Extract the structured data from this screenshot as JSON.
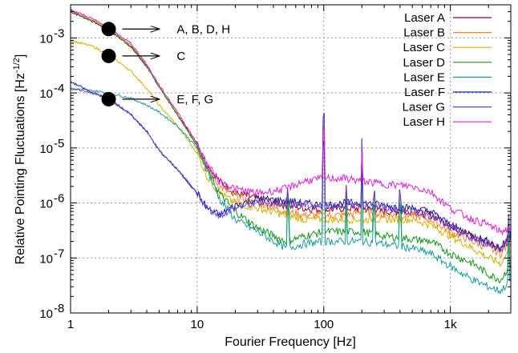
{
  "chart_data": {
    "type": "line",
    "title": "",
    "xlabel": "Fourier Frequency [Hz]",
    "ylabel": "Relative Pointing Fluctuations [Hz",
    "ylabel_exp": "-1/2",
    "ylabel_tail": "]",
    "x_scale": "log",
    "y_scale": "log",
    "xlim": [
      1,
      3000
    ],
    "ylim": [
      1e-08,
      0.004
    ],
    "x_ticks": [
      {
        "value": 1,
        "label": "1"
      },
      {
        "value": 10,
        "label": "10"
      },
      {
        "value": 100,
        "label": "100"
      },
      {
        "value": 1000,
        "label": "1k"
      }
    ],
    "y_ticks": [
      {
        "value": 1e-08,
        "base": "10",
        "exp": "-8"
      },
      {
        "value": 1e-07,
        "base": "10",
        "exp": "-7"
      },
      {
        "value": 1e-06,
        "base": "10",
        "exp": "-6"
      },
      {
        "value": 1e-05,
        "base": "10",
        "exp": "-5"
      },
      {
        "value": 0.0001,
        "base": "10",
        "exp": "-4"
      },
      {
        "value": 0.001,
        "base": "10",
        "exp": "-3"
      }
    ],
    "grid": true,
    "legend_position": "top-right",
    "series": [
      {
        "name": "Laser A",
        "color": "#99002b",
        "x": [
          1,
          1.5,
          2,
          3,
          4,
          5,
          7,
          10,
          12,
          15,
          20,
          30,
          50,
          70,
          100,
          150,
          200,
          300,
          500,
          700,
          1000,
          1500,
          2000,
          2500,
          3000
        ],
        "y": [
          0.003,
          0.002,
          0.0014,
          0.0007,
          0.0003,
          0.00013,
          4e-05,
          1.2e-05,
          5e-06,
          2.5e-06,
          1.5e-06,
          1.2e-06,
          9e-07,
          8e-07,
          7.5e-07,
          8e-07,
          8e-07,
          7e-07,
          7e-07,
          6e-07,
          4e-07,
          2.5e-07,
          2e-07,
          1.5e-07,
          2.5e-07
        ]
      },
      {
        "name": "Laser B",
        "color": "#ff7f2a",
        "x": [
          1,
          1.5,
          2,
          3,
          4,
          5,
          7,
          10,
          12,
          15,
          20,
          30,
          50,
          70,
          100,
          150,
          200,
          300,
          500,
          700,
          1000,
          1500,
          2000,
          2500,
          3000
        ],
        "y": [
          0.0032,
          0.0021,
          0.0015,
          0.00075,
          0.00031,
          0.00013,
          4e-05,
          1.1e-05,
          4e-06,
          2e-06,
          1.3e-06,
          1e-06,
          7e-07,
          6e-07,
          6e-07,
          6e-07,
          7e-07,
          6e-07,
          6e-07,
          5e-07,
          3e-07,
          2e-07,
          1.5e-07,
          1.2e-07,
          2e-07
        ]
      },
      {
        "name": "Laser C",
        "color": "#d4b000",
        "x": [
          1,
          1.5,
          2,
          3,
          4,
          5,
          7,
          10,
          12,
          15,
          20,
          30,
          50,
          70,
          100,
          150,
          200,
          300,
          500,
          700,
          1000,
          1500,
          2000,
          2500,
          3000
        ],
        "y": [
          0.0009,
          0.0007,
          0.0005,
          0.00025,
          0.00012,
          6e-05,
          2.5e-05,
          8e-06,
          3e-06,
          1.5e-06,
          1e-06,
          8e-07,
          6e-07,
          5e-07,
          5e-07,
          5e-07,
          5e-07,
          5e-07,
          5e-07,
          4e-07,
          2.5e-07,
          1.5e-07,
          1e-07,
          8e-08,
          1.5e-07
        ]
      },
      {
        "name": "Laser D",
        "color": "#109618",
        "x": [
          1,
          1.5,
          2,
          3,
          4,
          5,
          7,
          10,
          12,
          15,
          20,
          30,
          50,
          70,
          100,
          150,
          200,
          300,
          500,
          700,
          1000,
          1500,
          2000,
          2500,
          3000
        ],
        "y": [
          0.0031,
          0.002,
          0.0014,
          0.0007,
          0.0003,
          0.00013,
          4e-05,
          1.1e-05,
          4e-06,
          1.5e-06,
          7e-07,
          3.5e-07,
          2e-07,
          2.5e-07,
          3e-07,
          3e-07,
          3e-07,
          2.5e-07,
          2.2e-07,
          2e-07,
          1.2e-07,
          8e-08,
          5e-08,
          4e-08,
          8e-08
        ]
      },
      {
        "name": "Laser E",
        "color": "#1a9a9a",
        "x": [
          1,
          1.5,
          2,
          3,
          4,
          5,
          7,
          10,
          12,
          15,
          20,
          30,
          50,
          70,
          100,
          150,
          200,
          300,
          500,
          700,
          1000,
          1500,
          2000,
          2500,
          3000
        ],
        "y": [
          0.00012,
          0.00011,
          0.0001,
          8e-05,
          6e-05,
          4.5e-05,
          2.5e-05,
          1e-05,
          4e-06,
          1.2e-06,
          5e-07,
          3e-07,
          1.5e-07,
          1.8e-07,
          2e-07,
          2e-07,
          2e-07,
          1.8e-07,
          1.5e-07,
          1.2e-07,
          7e-08,
          4e-08,
          3e-08,
          2.5e-08,
          4e-08
        ]
      },
      {
        "name": "Laser F",
        "color": "#1f1f9e",
        "x": [
          1,
          1.5,
          2,
          3,
          4,
          5,
          7,
          10,
          12,
          15,
          20,
          30,
          50,
          70,
          100,
          150,
          200,
          300,
          500,
          700,
          1000,
          1500,
          2000,
          2500,
          3000
        ],
        "y": [
          0.00016,
          0.0001,
          8e-05,
          4e-05,
          2e-05,
          9e-06,
          4e-06,
          1.5e-06,
          8e-07,
          6e-07,
          9e-07,
          1.2e-06,
          1.1e-06,
          1e-06,
          9e-07,
          1e-06,
          1e-06,
          9e-07,
          8e-07,
          7e-07,
          4e-07,
          2.5e-07,
          2e-07,
          1.5e-07,
          3e-07
        ]
      },
      {
        "name": "Laser G",
        "color": "#6a3fd6",
        "x": [
          1,
          1.5,
          2,
          3,
          4,
          5,
          7,
          10,
          12,
          15,
          20,
          30,
          50,
          70,
          100,
          150,
          200,
          300,
          500,
          700,
          1000,
          1500,
          2000,
          2500,
          3000
        ],
        "y": [
          0.00012,
          0.0001,
          8e-05,
          4e-05,
          2e-05,
          9e-06,
          4e-06,
          1.5e-06,
          8e-07,
          6e-07,
          8e-07,
          1e-06,
          1e-06,
          9e-07,
          9e-07,
          9e-07,
          9e-07,
          8e-07,
          7e-07,
          6e-07,
          3.5e-07,
          2.2e-07,
          1.8e-07,
          1.4e-07,
          2.5e-07
        ]
      },
      {
        "name": "Laser H",
        "color": "#e020d0",
        "x": [
          1,
          1.5,
          2,
          3,
          4,
          5,
          7,
          10,
          12,
          15,
          20,
          30,
          50,
          70,
          100,
          150,
          200,
          300,
          500,
          700,
          1000,
          1500,
          2000,
          2500,
          3000
        ],
        "y": [
          0.0033,
          0.0022,
          0.0015,
          0.0008,
          0.00033,
          0.00014,
          4.5e-05,
          1.2e-05,
          5e-06,
          2.5e-06,
          1.8e-06,
          1.5e-06,
          1.8e-06,
          2.5e-06,
          2.8e-06,
          2.8e-06,
          2.5e-06,
          2.2e-06,
          2e-06,
          1.6e-06,
          8e-07,
          5e-07,
          4e-07,
          3e-07,
          3.5e-07
        ]
      }
    ],
    "annotations": [
      {
        "label": "A, B, D, H",
        "x_from": 2,
        "x_to": 5,
        "y": 0.00145
      },
      {
        "label": "C",
        "x_from": 2,
        "x_to": 5,
        "y": 0.00047
      },
      {
        "label": "E, F, G",
        "x_from": 2,
        "x_to": 5,
        "y": 7.7e-05
      }
    ],
    "peaks": [
      {
        "x": 7.4,
        "y": 3.5e-06
      },
      {
        "x": 52,
        "y": 2.5e-06
      },
      {
        "x": 100,
        "y": 7e-05
      },
      {
        "x": 150,
        "y": 2.5e-06
      },
      {
        "x": 200,
        "y": 1.6e-05
      },
      {
        "x": 250,
        "y": 2.5e-06
      },
      {
        "x": 400,
        "y": 2.5e-06
      },
      {
        "x": 2900,
        "y": 8e-07
      }
    ]
  }
}
